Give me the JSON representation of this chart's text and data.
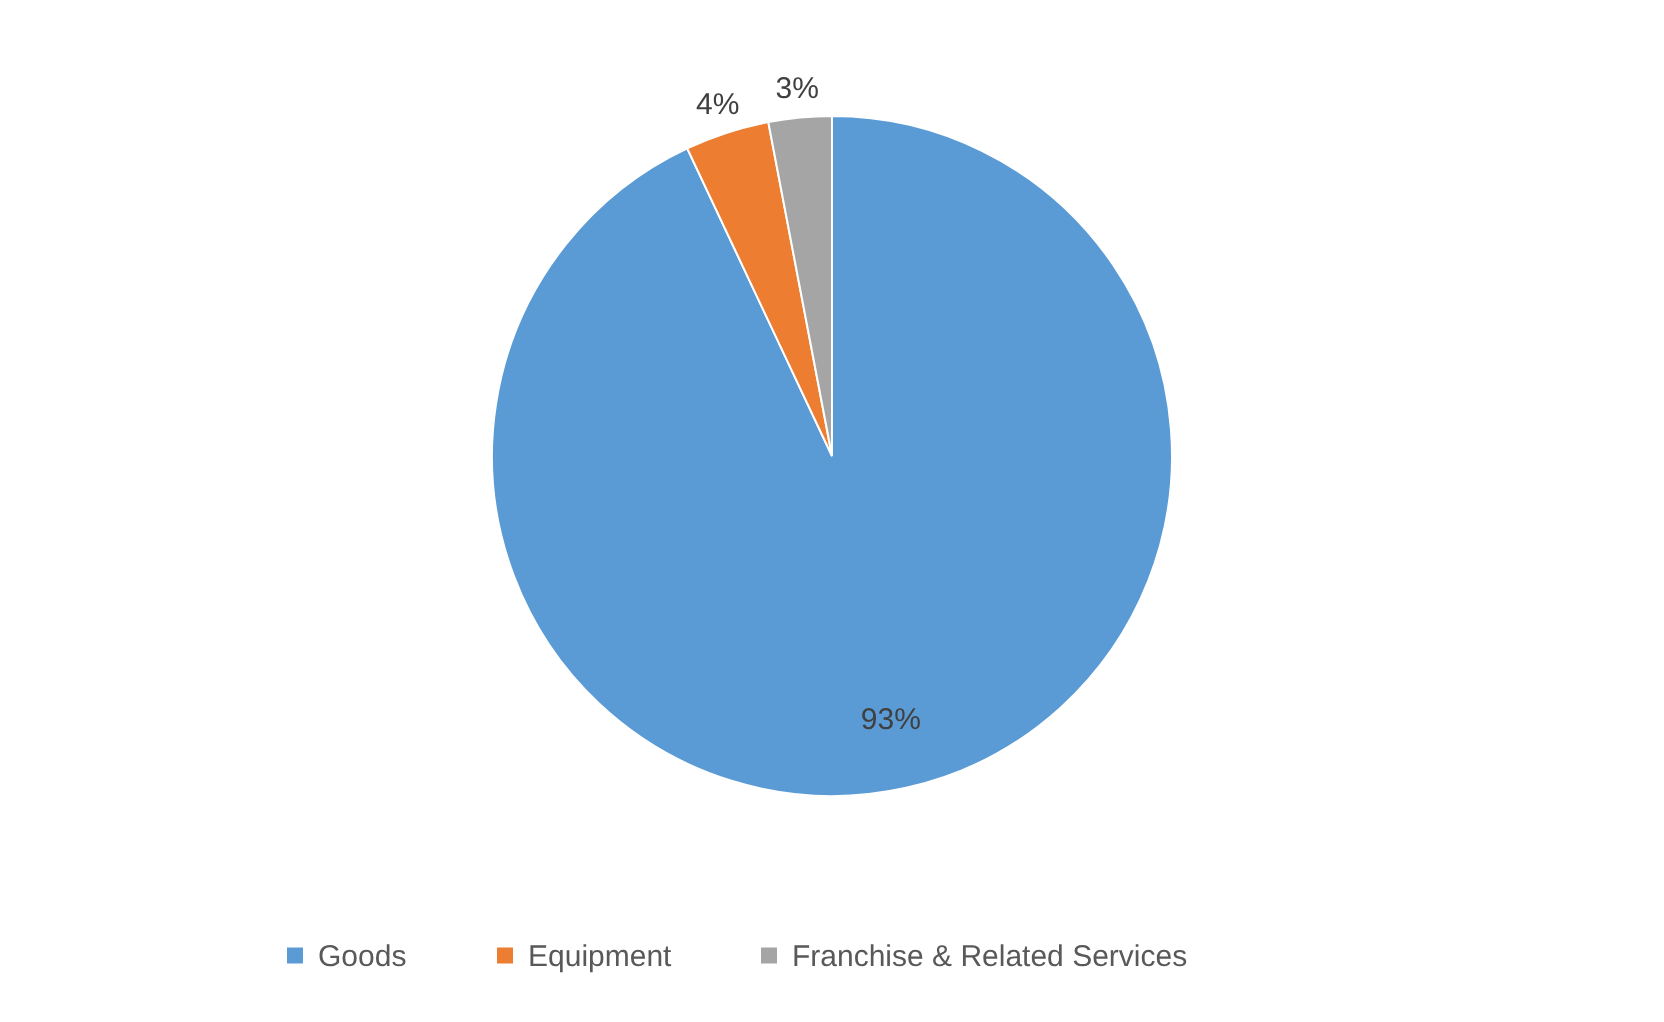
{
  "chart_data": {
    "type": "pie",
    "categories": [
      "Goods",
      "Equipment",
      "Franchise & Related Services"
    ],
    "values": [
      93,
      4,
      3
    ],
    "colors": [
      "#5b9bd5",
      "#ed7d31",
      "#a5a5a5"
    ],
    "value_labels": [
      "93%",
      "4%",
      "3%"
    ],
    "legend": "bottom"
  }
}
